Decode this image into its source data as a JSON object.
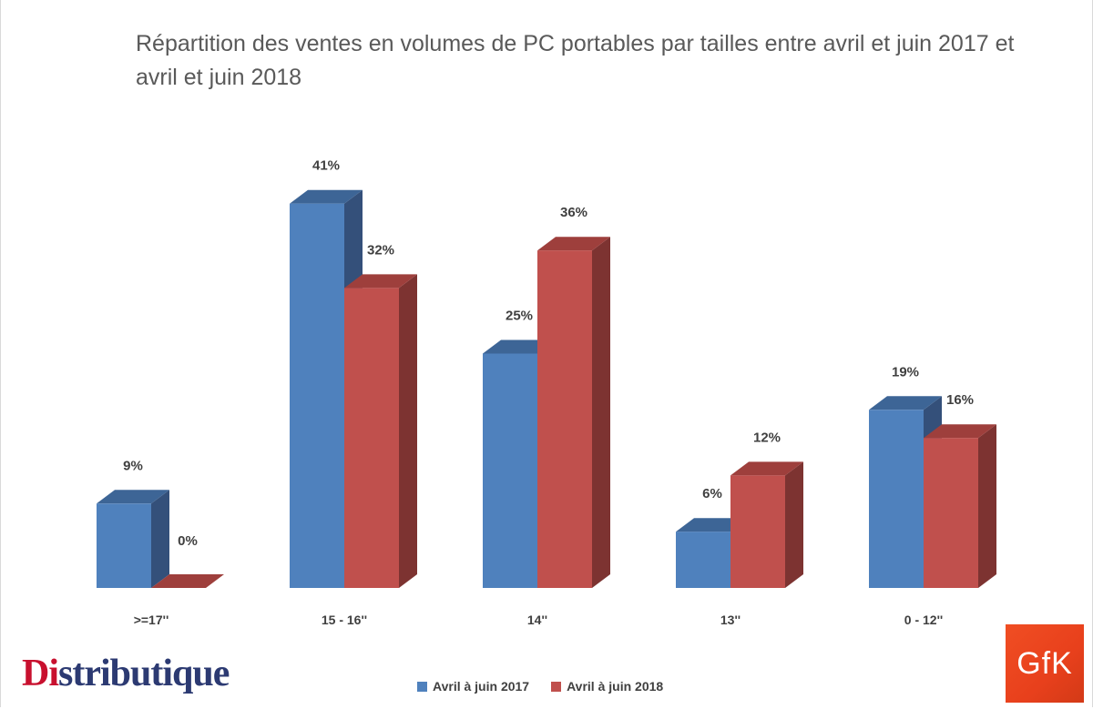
{
  "title": "Répartition des ventes en volumes de PC portables par tailles entre avril et juin 2017 et avril et juin 2018",
  "logos": {
    "left": "Distributique",
    "left_accent": "Di",
    "left_rest": "stributique",
    "right": "GfK"
  },
  "chart_data": {
    "type": "bar",
    "title": "Répartition des ventes en volumes de PC portables par tailles entre avril et juin 2017 et avril et juin 2018",
    "categories": [
      ">=17''",
      "15 - 16''",
      "14''",
      "13''",
      "0 - 12''"
    ],
    "series": [
      {
        "name": "Avril à juin 2017",
        "values": [
          9,
          41,
          25,
          6,
          19
        ],
        "labels": [
          "9%",
          "41%",
          "25%",
          "6%",
          "19%"
        ],
        "color": "#4f81bd",
        "side_color": "#34507a",
        "top_color": "#3d6596"
      },
      {
        "name": "Avril à juin 2018",
        "values": [
          0,
          32,
          36,
          12,
          16
        ],
        "labels": [
          "0%",
          "32%",
          "36%",
          "12%",
          "16%"
        ],
        "color": "#c0504d",
        "side_color": "#7d3331",
        "top_color": "#9e3f3c"
      }
    ],
    "ylim": [
      0,
      41
    ],
    "grid": false,
    "legend_position": "bottom",
    "style": "3d-column"
  }
}
